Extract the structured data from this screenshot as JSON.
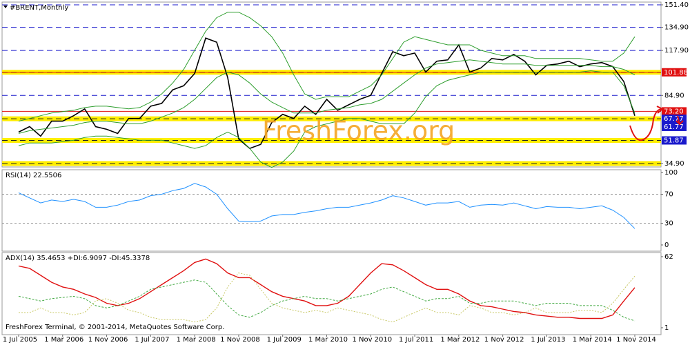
{
  "chart_data": [
    {
      "type": "line",
      "title": "#BRENT,Monthly",
      "categories": [
        "1 Jul 2005",
        null,
        null,
        null,
        "1 Mar 2006",
        null,
        null,
        null,
        "1 Nov 2006",
        null,
        null,
        null,
        "1 Jul 2007",
        null,
        null,
        null,
        "1 Mar 2008",
        null,
        null,
        null,
        "1 Nov 2008",
        null,
        null,
        null,
        "1 Jul 2009",
        null,
        null,
        null,
        "1 Mar 2010",
        null,
        null,
        null,
        "1 Nov 2010",
        null,
        null,
        null,
        "1 Jul 2011",
        null,
        null,
        null,
        "1 Mar 2012",
        null,
        null,
        null,
        "1 Nov 2012",
        null,
        null,
        null,
        "1 Jul 2013",
        null,
        null,
        null,
        "1 Mar 2014",
        null,
        null,
        null,
        "1 Nov 2014"
      ],
      "series": [
        {
          "color": "#000000",
          "width": 1.6,
          "values": [
            58,
            62,
            55,
            66,
            66,
            70,
            75,
            62,
            60,
            57,
            68,
            68,
            77,
            79,
            89,
            92,
            101,
            127,
            124,
            98,
            53,
            46,
            49,
            65,
            71,
            68,
            77,
            71,
            82,
            74,
            78,
            82,
            85,
            101,
            117,
            114,
            116,
            102,
            110,
            111,
            122,
            102,
            105,
            112,
            111,
            115,
            110,
            100,
            107,
            108,
            110,
            106,
            108,
            109,
            106,
            95,
            70
          ]
        },
        {
          "color": "#2e9e2e",
          "width": 1,
          "values": [
            66,
            68,
            70,
            72,
            73,
            74,
            76,
            77,
            77,
            76,
            75,
            76,
            80,
            86,
            94,
            104,
            118,
            132,
            142,
            146,
            146,
            142,
            136,
            128,
            116,
            100,
            86,
            82,
            84,
            84,
            84,
            88,
            92,
            100,
            112,
            124,
            128,
            126,
            124,
            122,
            122,
            122,
            118,
            116,
            114,
            114,
            114,
            112,
            112,
            112,
            112,
            112,
            111,
            110,
            110,
            116,
            128
          ]
        },
        {
          "color": "#2e9e2e",
          "width": 1,
          "values": [
            57,
            59,
            60,
            61,
            62,
            63,
            65,
            66,
            66,
            65,
            64,
            64,
            66,
            69,
            72,
            76,
            82,
            90,
            98,
            102,
            100,
            94,
            86,
            80,
            76,
            72,
            72,
            72,
            74,
            75,
            76,
            78,
            79,
            82,
            88,
            94,
            100,
            105,
            108,
            109,
            110,
            111,
            110,
            109,
            108,
            108,
            108,
            107,
            107,
            107,
            107,
            107,
            107,
            106,
            106,
            104,
            100
          ]
        },
        {
          "color": "#2e9e2e",
          "width": 1,
          "values": [
            48,
            50,
            50,
            50,
            51,
            52,
            54,
            55,
            55,
            54,
            53,
            52,
            52,
            52,
            50,
            48,
            46,
            48,
            54,
            58,
            54,
            46,
            36,
            32,
            36,
            44,
            58,
            62,
            64,
            66,
            68,
            68,
            66,
            64,
            64,
            64,
            72,
            84,
            92,
            96,
            98,
            100,
            102,
            102,
            102,
            102,
            102,
            102,
            102,
            102,
            102,
            102,
            103,
            102,
            102,
            92,
            72
          ]
        }
      ],
      "ylim": [
        34.9,
        151.4
      ],
      "yticks": [
        {
          "value": 151.4,
          "label": "151.40"
        },
        {
          "value": 134.9,
          "label": "134.90"
        },
        {
          "value": 117.9,
          "label": "117.90"
        },
        {
          "value": 84.9,
          "label": "84.90"
        },
        {
          "value": 34.9,
          "label": "34.90"
        }
      ],
      "grid": true,
      "grid_color": "#1a1acc",
      "yellow_levels": [
        101.88,
        67.77,
        51.87,
        34.9
      ],
      "levels": [
        {
          "value": 101.88,
          "label": "101.88",
          "color": "#e01010"
        },
        {
          "value": 73.2,
          "label": "73.20",
          "color": "#e01010"
        },
        {
          "value": 67.77,
          "label": "67.77",
          "color": "#1a1acc"
        },
        {
          "value": 61.77,
          "label": "61.77",
          "color": "#1a1acc"
        },
        {
          "value": 51.87,
          "label": "51.87",
          "color": "#1a1acc"
        }
      ]
    },
    {
      "type": "line",
      "title": "RSI(14) 22.5506",
      "categories": [
        "1 Jul 2005",
        null,
        null,
        null,
        "1 Mar 2006",
        null,
        null,
        null,
        "1 Nov 2006",
        null,
        null,
        null,
        "1 Jul 2007",
        null,
        null,
        null,
        "1 Mar 2008",
        null,
        null,
        null,
        "1 Nov 2008",
        null,
        null,
        null,
        "1 Jul 2009",
        null,
        null,
        null,
        "1 Mar 2010",
        null,
        null,
        null,
        "1 Nov 2010",
        null,
        null,
        null,
        "1 Jul 2011",
        null,
        null,
        null,
        "1 Mar 2012",
        null,
        null,
        null,
        "1 Nov 2012",
        null,
        null,
        null,
        "1 Jul 2013",
        null,
        null,
        null,
        "1 Mar 2014",
        null,
        null,
        null,
        "1 Nov 2014"
      ],
      "series": [
        {
          "color": "#1e90ff",
          "width": 1,
          "values": [
            72,
            65,
            58,
            62,
            60,
            63,
            60,
            52,
            52,
            55,
            60,
            62,
            68,
            70,
            75,
            78,
            85,
            80,
            70,
            50,
            33,
            32,
            33,
            40,
            42,
            42,
            45,
            47,
            50,
            52,
            52,
            55,
            58,
            62,
            68,
            65,
            60,
            55,
            58,
            58,
            60,
            52,
            55,
            56,
            55,
            58,
            54,
            50,
            53,
            52,
            52,
            50,
            52,
            54,
            48,
            38,
            22.55
          ]
        }
      ],
      "ylim": [
        0,
        100
      ],
      "yticks": [
        100,
        70,
        30,
        0
      ],
      "levels": [
        70,
        30
      ]
    },
    {
      "type": "line",
      "title": "ADX(14) 35.4653 +DI:6.9097 -DI:45.3378",
      "categories": [
        "1 Jul 2005",
        null,
        null,
        null,
        "1 Mar 2006",
        null,
        null,
        null,
        "1 Nov 2006",
        null,
        null,
        null,
        "1 Jul 2007",
        null,
        null,
        null,
        "1 Mar 2008",
        null,
        null,
        null,
        "1 Nov 2008",
        null,
        null,
        null,
        "1 Jul 2009",
        null,
        null,
        null,
        "1 Mar 2010",
        null,
        null,
        null,
        "1 Nov 2010",
        null,
        null,
        null,
        "1 Jul 2011",
        null,
        null,
        null,
        "1 Mar 2012",
        null,
        null,
        null,
        "1 Nov 2012",
        null,
        null,
        null,
        "1 Jul 2013",
        null,
        null,
        null,
        "1 Mar 2014",
        null,
        null,
        null,
        "1 Nov 2014"
      ],
      "series": [
        {
          "color": "#e01010",
          "width": 1.4,
          "values": [
            54,
            52,
            46,
            40,
            36,
            34,
            30,
            27,
            22,
            20,
            22,
            26,
            32,
            38,
            44,
            50,
            57,
            60,
            56,
            48,
            44,
            44,
            38,
            32,
            28,
            26,
            24,
            20,
            20,
            22,
            28,
            38,
            48,
            56,
            55,
            50,
            44,
            38,
            34,
            34,
            30,
            24,
            20,
            19,
            17,
            15,
            14,
            12,
            11,
            10,
            10,
            9,
            9,
            9,
            12,
            24,
            35.47
          ]
        },
        {
          "color": "#44aa44",
          "width": 1,
          "dash": "3 2",
          "values": [
            28,
            26,
            24,
            26,
            27,
            28,
            26,
            20,
            18,
            20,
            24,
            28,
            34,
            36,
            38,
            40,
            42,
            40,
            30,
            20,
            12,
            10,
            14,
            20,
            24,
            26,
            28,
            26,
            26,
            24,
            26,
            28,
            30,
            34,
            36,
            32,
            28,
            24,
            26,
            26,
            28,
            22,
            22,
            24,
            24,
            24,
            22,
            20,
            22,
            22,
            22,
            20,
            20,
            20,
            16,
            10,
            6.91
          ]
        },
        {
          "color": "#c8c864",
          "width": 1,
          "dash": "2 2",
          "values": [
            14,
            14,
            18,
            14,
            14,
            12,
            14,
            24,
            26,
            22,
            16,
            14,
            10,
            8,
            8,
            8,
            6,
            8,
            18,
            36,
            48,
            46,
            34,
            22,
            18,
            16,
            14,
            16,
            14,
            18,
            16,
            14,
            12,
            8,
            6,
            10,
            14,
            18,
            14,
            14,
            12,
            20,
            18,
            14,
            14,
            12,
            14,
            18,
            14,
            14,
            14,
            16,
            16,
            14,
            22,
            34,
            45.34
          ]
        }
      ],
      "ylim": [
        1,
        62
      ],
      "yticks": [
        62,
        1
      ]
    }
  ],
  "watermark": "FreshForex.org",
  "footer": "FreshForex Terminal, © 2001-2014, MetaQuotes Software Corp."
}
